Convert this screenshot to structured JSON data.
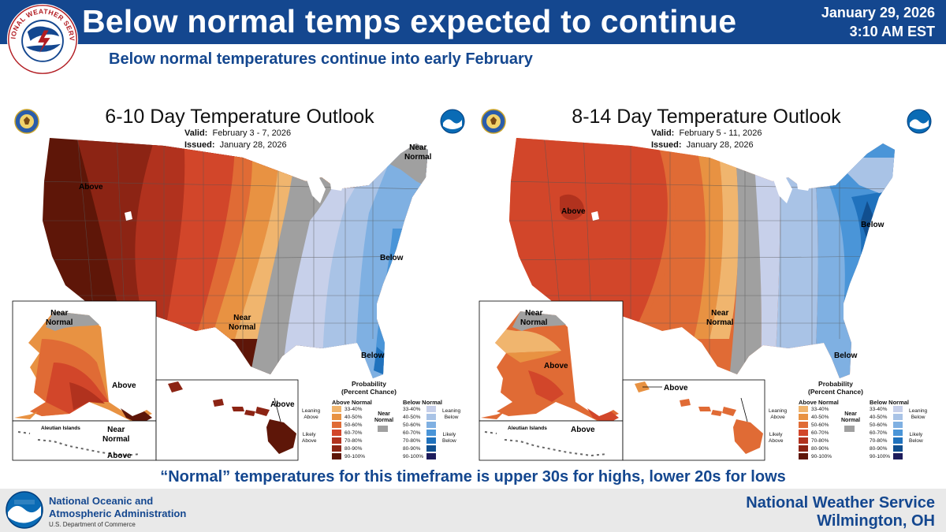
{
  "header": {
    "title": "Below normal temps expected to continue",
    "date": "January 29, 2026",
    "time": "3:10 AM EST",
    "subtitle": "Below normal temperatures continue into early February",
    "logo_text": "NATIONAL WEATHER SERVICE"
  },
  "maps": [
    {
      "title": "6-10 Day Temperature Outlook",
      "valid_label": "Valid:",
      "valid_dates": "February 3 - 7, 2026",
      "issued_label": "Issued:",
      "issued_date": "January 28, 2026",
      "labels": {
        "above_west": "Above",
        "near_normal_ne": "Near\nNormal",
        "below_east": "Below",
        "near_normal_south": "Near\nNormal",
        "below_florida": "Below",
        "near_normal_ak": "Near\nNormal",
        "above_ak": "Above",
        "aleutian": "Aleutian Islands",
        "near_normal_aleutian": "Near\nNormal",
        "above_aleutian": "Above",
        "above_hawaii": "Above"
      }
    },
    {
      "title": "8-14 Day Temperature Outlook",
      "valid_label": "Valid:",
      "valid_dates": "February 5 - 11, 2026",
      "issued_label": "Issued:",
      "issued_date": "January 28, 2026",
      "labels": {
        "above_west": "Above",
        "below_east": "Below",
        "near_normal_south": "Near\nNormal",
        "below_florida": "Below",
        "near_normal_ak": "Near\nNormal",
        "above_ak": "Above",
        "aleutian": "Aleutian Islands",
        "above_aleutian": "Above",
        "above_hawaii": "Above"
      }
    }
  ],
  "legend": {
    "title": "Probability\n(Percent Chance)",
    "above_header": "Above Normal",
    "below_header": "Below Normal",
    "near_normal": "Near\nNormal",
    "leaning_above": "Leaning\nAbove",
    "likely_above": "Likely\nAbove",
    "leaning_below": "Leaning\nBelow",
    "likely_below": "Likely\nBelow",
    "ranges": [
      "33-40%",
      "40-50%",
      "50-60%",
      "60-70%",
      "70-80%",
      "80-90%",
      "90-100%"
    ],
    "above_colors": [
      "#f0b56e",
      "#e89242",
      "#e06b35",
      "#d2462a",
      "#b1321e",
      "#8c2414",
      "#5e1608"
    ],
    "below_colors": [
      "#c7d0ea",
      "#a9c3e6",
      "#7fb0e2",
      "#4a95d8",
      "#2072bd",
      "#114f8f",
      "#1d1c5c"
    ],
    "near_normal_color": "#a0a0a0"
  },
  "footer": {
    "normal_note": "“Normal” temperatures for this timeframe is upper 30s for highs, lower 20s for lows",
    "noaa_line1": "National Oceanic and",
    "noaa_line2": "Atmospheric Administration",
    "noaa_dept": "U.S. Department of Commerce",
    "nws_name": "National Weather Service",
    "office": "Wilmington, OH"
  }
}
